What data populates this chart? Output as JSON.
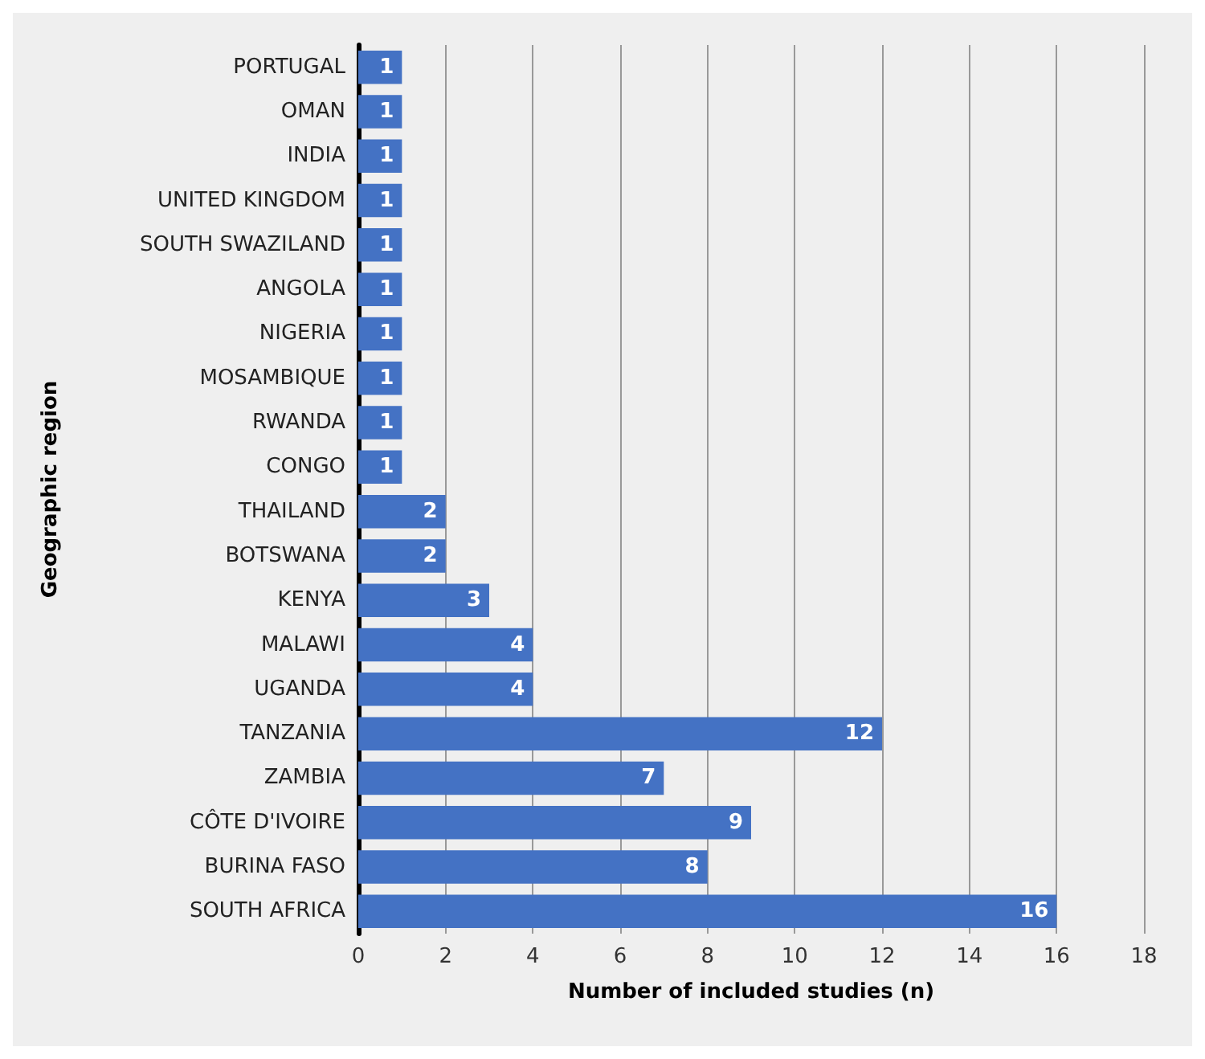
{
  "chart_data": {
    "type": "bar",
    "orientation": "horizontal",
    "xlabel": "Number of included studies (n)",
    "ylabel": "Geographic region",
    "categories": [
      "PORTUGAL",
      "OMAN",
      "INDIA",
      "UNITED KINGDOM",
      "SOUTH SWAZILAND",
      "ANGOLA",
      "NIGERIA",
      "MOSAMBIQUE",
      "RWANDA",
      "CONGO",
      "THAILAND",
      "BOTSWANA",
      "KENYA",
      "MALAWI",
      "UGANDA",
      "TANZANIA",
      "ZAMBIA",
      "CÔTE D'IVOIRE",
      "BURINA FASO",
      "SOUTH AFRICA"
    ],
    "values": [
      1,
      1,
      1,
      1,
      1,
      1,
      1,
      1,
      1,
      1,
      2,
      2,
      3,
      4,
      4,
      12,
      7,
      9,
      8,
      16
    ],
    "color": "#4472c4",
    "xlim": [
      0,
      18
    ],
    "xticks": [
      0,
      2,
      4,
      6,
      8,
      10,
      12,
      14,
      16,
      18
    ],
    "grid": "x",
    "data_labels": true
  }
}
